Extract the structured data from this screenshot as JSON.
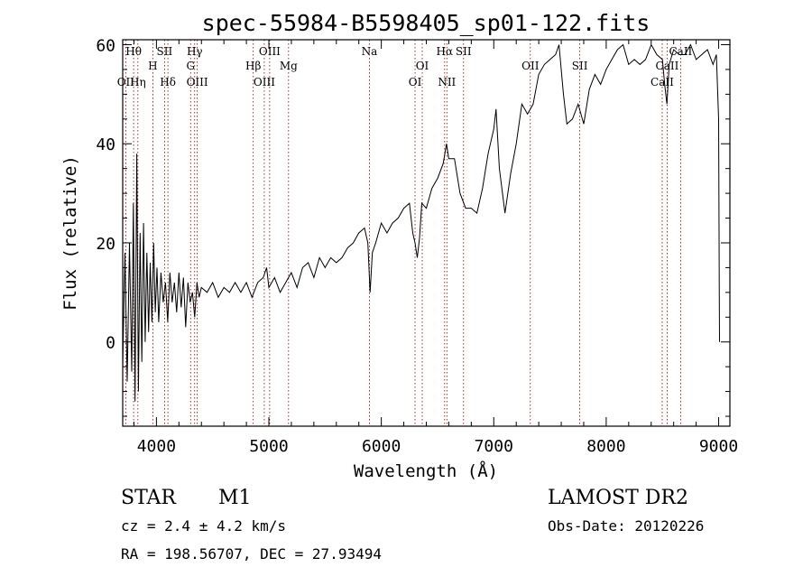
{
  "chart_data": {
    "type": "line",
    "title": "spec-55984-B5598405_sp01-122.fits",
    "xlabel": "Wavelength (Å)",
    "ylabel": "Flux (relative)",
    "xlim": [
      3700,
      9100
    ],
    "ylim": [
      -17,
      61
    ],
    "xticks": [
      4000,
      5000,
      6000,
      7000,
      8000,
      9000
    ],
    "yticks": [
      0,
      20,
      40,
      60
    ],
    "grid": false,
    "series": [
      {
        "color": "#000000",
        "points": [
          [
            3700,
            -5
          ],
          [
            3720,
            18
          ],
          [
            3740,
            -8
          ],
          [
            3760,
            20
          ],
          [
            3780,
            -6
          ],
          [
            3795,
            28
          ],
          [
            3810,
            -12
          ],
          [
            3825,
            38
          ],
          [
            3840,
            -10
          ],
          [
            3855,
            22
          ],
          [
            3870,
            -4
          ],
          [
            3885,
            24
          ],
          [
            3900,
            0
          ],
          [
            3915,
            18
          ],
          [
            3930,
            2
          ],
          [
            3945,
            16
          ],
          [
            3960,
            4
          ],
          [
            3975,
            20
          ],
          [
            3990,
            6
          ],
          [
            4005,
            15
          ],
          [
            4020,
            4
          ],
          [
            4040,
            14
          ],
          [
            4060,
            8
          ],
          [
            4080,
            12
          ],
          [
            4100,
            4
          ],
          [
            4120,
            14
          ],
          [
            4140,
            8
          ],
          [
            4160,
            12
          ],
          [
            4180,
            6
          ],
          [
            4200,
            14
          ],
          [
            4220,
            7
          ],
          [
            4240,
            13
          ],
          [
            4260,
            3
          ],
          [
            4280,
            12
          ],
          [
            4300,
            8
          ],
          [
            4320,
            10
          ],
          [
            4340,
            5
          ],
          [
            4360,
            12
          ],
          [
            4380,
            9
          ],
          [
            4400,
            11
          ],
          [
            4450,
            10
          ],
          [
            4500,
            12
          ],
          [
            4550,
            9
          ],
          [
            4600,
            11
          ],
          [
            4650,
            10
          ],
          [
            4700,
            12
          ],
          [
            4750,
            10
          ],
          [
            4800,
            12
          ],
          [
            4850,
            9
          ],
          [
            4900,
            12
          ],
          [
            4950,
            13
          ],
          [
            4980,
            15
          ],
          [
            5000,
            11
          ],
          [
            5050,
            13
          ],
          [
            5100,
            10
          ],
          [
            5150,
            12
          ],
          [
            5200,
            14
          ],
          [
            5250,
            11
          ],
          [
            5300,
            15
          ],
          [
            5350,
            16
          ],
          [
            5400,
            13
          ],
          [
            5450,
            17
          ],
          [
            5500,
            15
          ],
          [
            5550,
            17
          ],
          [
            5600,
            16
          ],
          [
            5650,
            17
          ],
          [
            5700,
            19
          ],
          [
            5750,
            20
          ],
          [
            5800,
            22
          ],
          [
            5850,
            23
          ],
          [
            5880,
            20
          ],
          [
            5900,
            10
          ],
          [
            5920,
            18
          ],
          [
            5950,
            20
          ],
          [
            6000,
            24
          ],
          [
            6050,
            22
          ],
          [
            6100,
            24
          ],
          [
            6150,
            25
          ],
          [
            6200,
            27
          ],
          [
            6250,
            28
          ],
          [
            6280,
            22
          ],
          [
            6300,
            20
          ],
          [
            6320,
            17
          ],
          [
            6340,
            21
          ],
          [
            6360,
            28
          ],
          [
            6400,
            27
          ],
          [
            6450,
            31
          ],
          [
            6500,
            33
          ],
          [
            6550,
            36
          ],
          [
            6580,
            40
          ],
          [
            6600,
            37
          ],
          [
            6650,
            37
          ],
          [
            6700,
            30
          ],
          [
            6750,
            27
          ],
          [
            6800,
            27
          ],
          [
            6850,
            26
          ],
          [
            6900,
            31
          ],
          [
            6950,
            38
          ],
          [
            7000,
            43
          ],
          [
            7020,
            47
          ],
          [
            7050,
            35
          ],
          [
            7100,
            26
          ],
          [
            7150,
            34
          ],
          [
            7200,
            40
          ],
          [
            7250,
            48
          ],
          [
            7300,
            46
          ],
          [
            7350,
            48
          ],
          [
            7400,
            54
          ],
          [
            7450,
            56
          ],
          [
            7500,
            57
          ],
          [
            7550,
            58
          ],
          [
            7580,
            60
          ],
          [
            7620,
            50
          ],
          [
            7650,
            44
          ],
          [
            7700,
            45
          ],
          [
            7750,
            48
          ],
          [
            7800,
            44
          ],
          [
            7850,
            51
          ],
          [
            7900,
            54
          ],
          [
            7950,
            52
          ],
          [
            8000,
            55
          ],
          [
            8050,
            57
          ],
          [
            8100,
            59
          ],
          [
            8150,
            60
          ],
          [
            8200,
            56
          ],
          [
            8250,
            57
          ],
          [
            8300,
            56
          ],
          [
            8350,
            57
          ],
          [
            8400,
            60
          ],
          [
            8450,
            58
          ],
          [
            8500,
            57
          ],
          [
            8520,
            52
          ],
          [
            8540,
            48
          ],
          [
            8560,
            56
          ],
          [
            8600,
            59
          ],
          [
            8650,
            58
          ],
          [
            8700,
            58
          ],
          [
            8750,
            60
          ],
          [
            8800,
            57
          ],
          [
            8850,
            58
          ],
          [
            8900,
            59
          ],
          [
            8950,
            56
          ],
          [
            8980,
            58
          ],
          [
            9000,
            45
          ],
          [
            9005,
            12
          ],
          [
            9008,
            0
          ]
        ]
      }
    ],
    "line_markers": [
      {
        "label": "Hθ",
        "x": 3797,
        "row": 0
      },
      {
        "label": "OII",
        "x": 3727,
        "row": 2
      },
      {
        "label": "Hη",
        "x": 3835,
        "row": 2
      },
      {
        "label": "H",
        "x": 3968,
        "row": 1
      },
      {
        "label": "SII",
        "x": 4072,
        "row": 0
      },
      {
        "label": "Hδ",
        "x": 4102,
        "row": 2
      },
      {
        "label": "Hγ",
        "x": 4340,
        "row": 0
      },
      {
        "label": "G",
        "x": 4304,
        "row": 1
      },
      {
        "label": "OIII",
        "x": 4363,
        "row": 2
      },
      {
        "label": "OIII",
        "x": 5007,
        "row": 0
      },
      {
        "label": "Hβ",
        "x": 4861,
        "row": 1
      },
      {
        "label": "OIII",
        "x": 4959,
        "row": 2
      },
      {
        "label": "Mg",
        "x": 5175,
        "row": 1
      },
      {
        "label": "Na",
        "x": 5894,
        "row": 0
      },
      {
        "label": "OI",
        "x": 6364,
        "row": 1
      },
      {
        "label": "OI",
        "x": 6300,
        "row": 2
      },
      {
        "label": "Hα",
        "x": 6563,
        "row": 0
      },
      {
        "label": "SII",
        "x": 6731,
        "row": 0
      },
      {
        "label": "NII",
        "x": 6583,
        "row": 2
      },
      {
        "label": "OII",
        "x": 7325,
        "row": 1
      },
      {
        "label": "SII",
        "x": 7765,
        "row": 1
      },
      {
        "label": "CaII",
        "x": 8662,
        "row": 0
      },
      {
        "label": "CaII",
        "x": 8542,
        "row": 1
      },
      {
        "label": "CaII",
        "x": 8498,
        "row": 2
      }
    ]
  },
  "info": {
    "object_class": "STAR",
    "subclass": "M1",
    "survey": "LAMOST DR2",
    "cz": "cz = 2.4 ± 4.2 km/s",
    "obs_date": "Obs-Date: 20120226",
    "coords": "RA = 198.56707, DEC =  27.93494"
  },
  "colors": {
    "line_marker": "#8b0000",
    "spectrum": "#000000"
  }
}
